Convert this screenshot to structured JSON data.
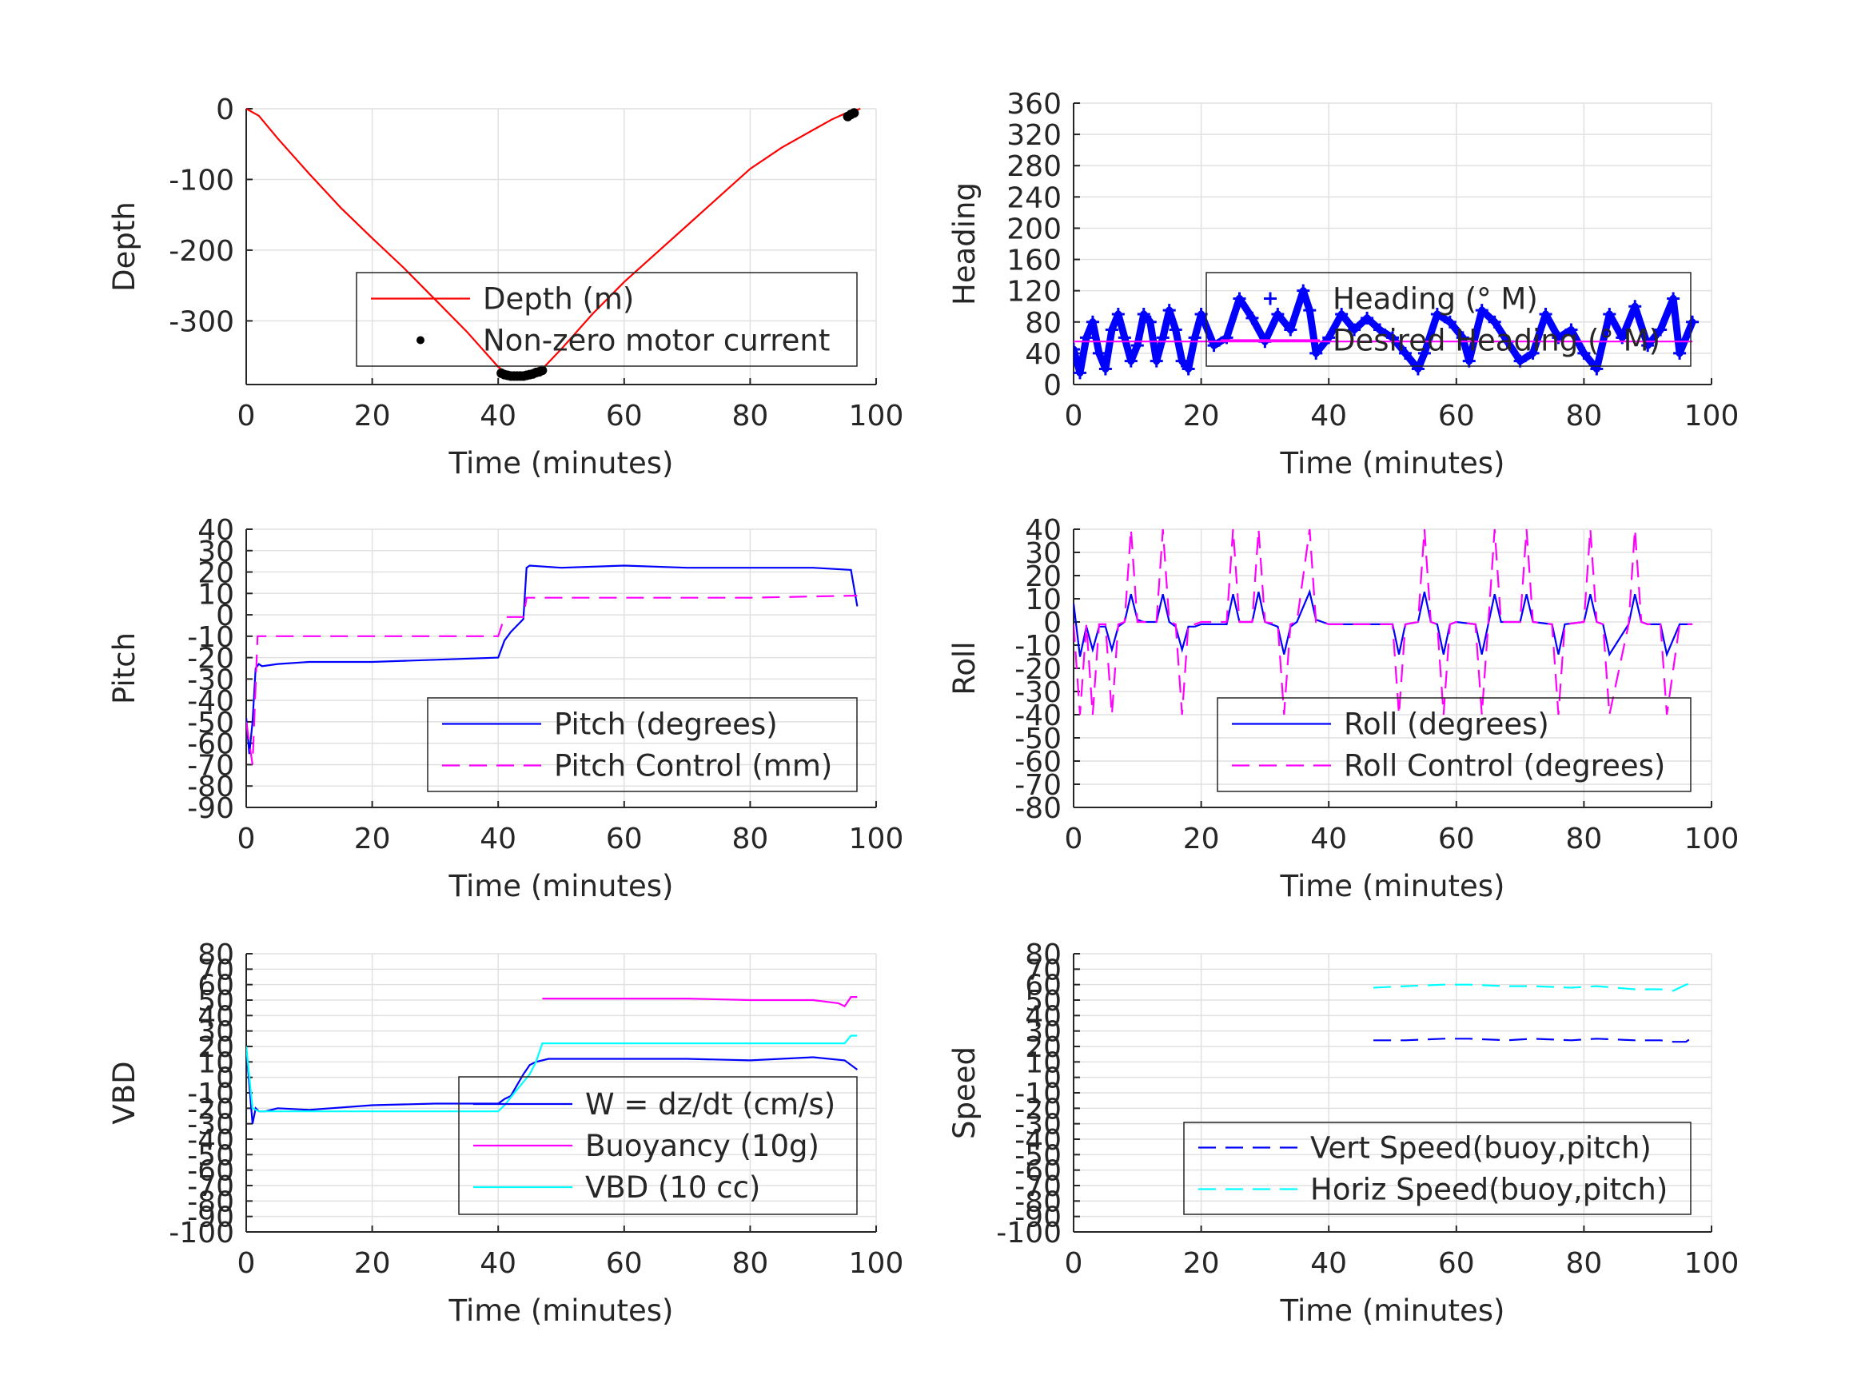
{
  "chart_data": [
    {
      "type": "line",
      "xlabel": "Time (minutes)",
      "ylabel": "Depth",
      "xlim": [
        0,
        100
      ],
      "ylim": [
        -390,
        0
      ],
      "xticks": [
        0,
        20,
        40,
        60,
        80,
        100
      ],
      "yticks": [
        0,
        -100,
        -200,
        -300
      ],
      "grid": true,
      "legend": "bottom-right",
      "series": [
        {
          "name": "Depth (m)",
          "style": "solid",
          "color": "#ff0000",
          "marker": "none",
          "x": [
            0,
            2,
            5,
            10,
            15,
            20,
            25,
            30,
            35,
            40,
            41.5,
            43,
            45,
            47,
            50,
            55,
            60,
            65,
            70,
            75,
            80,
            85,
            90,
            93,
            95,
            97.5
          ],
          "y": [
            0,
            -10,
            -42,
            -92,
            -140,
            -183,
            -225,
            -270,
            -315,
            -365,
            -375,
            -378,
            -376,
            -368,
            -340,
            -290,
            -245,
            -205,
            -165,
            -125,
            -85,
            -55,
            -30,
            -15,
            -7,
            0
          ]
        },
        {
          "name": "Non-zero motor current",
          "style": "none",
          "color": "#000000",
          "marker": "dot",
          "x": [
            40.5,
            41,
            41.5,
            42,
            42.5,
            43,
            43.5,
            44,
            44.5,
            45,
            45.5,
            46,
            46.5,
            47,
            95.5,
            96,
            96.5
          ],
          "y": [
            -374,
            -376,
            -377,
            -378,
            -378,
            -378,
            -378,
            -378,
            -377,
            -376,
            -375,
            -373,
            -372,
            -370,
            -11,
            -8,
            -6
          ]
        }
      ]
    },
    {
      "type": "line",
      "xlabel": "Time (minutes)",
      "ylabel": "Heading",
      "xlim": [
        0,
        100
      ],
      "ylim": [
        0,
        360
      ],
      "xticks": [
        0,
        20,
        40,
        60,
        80,
        100
      ],
      "yticks": [
        0,
        40,
        80,
        120,
        160,
        200,
        240,
        280,
        320,
        360
      ],
      "grid": true,
      "legend": "center-right",
      "series": [
        {
          "name": "Heading (° M)",
          "style": "none",
          "color": "#0000ff",
          "marker": "plus",
          "x": [
            0,
            1,
            2,
            3,
            4,
            5,
            6,
            7,
            8,
            9,
            10,
            11,
            12,
            13,
            14,
            15,
            16,
            17,
            18,
            19,
            20,
            22,
            24,
            26,
            28,
            30,
            32,
            34,
            36,
            37,
            38,
            40,
            42,
            44,
            46,
            48,
            50,
            52,
            54,
            55,
            57,
            59,
            61,
            62,
            64,
            66,
            68,
            70,
            72,
            74,
            76,
            78,
            80,
            82,
            84,
            86,
            88,
            90,
            92,
            94,
            95,
            97
          ],
          "y": [
            45,
            15,
            60,
            80,
            40,
            20,
            70,
            90,
            60,
            30,
            50,
            90,
            80,
            30,
            60,
            95,
            70,
            30,
            20,
            60,
            90,
            50,
            60,
            110,
            85,
            55,
            90,
            70,
            120,
            95,
            40,
            60,
            90,
            70,
            85,
            70,
            60,
            40,
            20,
            40,
            90,
            80,
            60,
            30,
            95,
            80,
            55,
            30,
            40,
            90,
            60,
            70,
            40,
            20,
            90,
            60,
            100,
            50,
            70,
            110,
            40,
            80
          ]
        },
        {
          "name": "Desired Heading (° M)",
          "style": "solid",
          "color": "#ff00ff",
          "marker": "none",
          "x": [
            0,
            97
          ],
          "y": [
            55,
            55
          ]
        }
      ]
    },
    {
      "type": "line",
      "xlabel": "Time (minutes)",
      "ylabel": "Pitch",
      "xlim": [
        0,
        100
      ],
      "ylim": [
        -90,
        40
      ],
      "xticks": [
        0,
        20,
        40,
        60,
        80,
        100
      ],
      "yticks": [
        40,
        30,
        20,
        10,
        0,
        -10,
        -20,
        -30,
        -40,
        -50,
        -60,
        -70,
        -80,
        -90
      ],
      "grid": true,
      "legend": "bottom-right",
      "series": [
        {
          "name": "Pitch (degrees)",
          "style": "solid",
          "color": "#0000ff",
          "marker": "none",
          "x": [
            0,
            0.5,
            1,
            1.5,
            2,
            2.5,
            5,
            10,
            20,
            30,
            40,
            41,
            42,
            43,
            44,
            44.5,
            45,
            50,
            60,
            70,
            80,
            90,
            96,
            97
          ],
          "y": [
            -48,
            -65,
            -50,
            -25,
            -23,
            -24,
            -23,
            -22,
            -22,
            -21,
            -20,
            -12,
            -8,
            -5,
            -2,
            22,
            23,
            22,
            23,
            22,
            22,
            22,
            21,
            4
          ]
        },
        {
          "name": "Pitch Control (mm)",
          "style": "dashed",
          "color": "#ff00ff",
          "marker": "none",
          "x": [
            0,
            1,
            1.8,
            2,
            10,
            20,
            30,
            40,
            41,
            44,
            44.5,
            60,
            80,
            97
          ],
          "y": [
            -50,
            -70,
            -10,
            -10,
            -10,
            -10,
            -10,
            -10,
            -1,
            -1,
            8,
            8,
            8,
            9
          ]
        }
      ]
    },
    {
      "type": "line",
      "xlabel": "Time (minutes)",
      "ylabel": "Roll",
      "xlim": [
        0,
        100
      ],
      "ylim": [
        -80,
        40
      ],
      "xticks": [
        0,
        20,
        40,
        60,
        80,
        100
      ],
      "yticks": [
        40,
        30,
        20,
        10,
        0,
        -10,
        -20,
        -30,
        -40,
        -50,
        -60,
        -70,
        -80
      ],
      "grid": true,
      "legend": "bottom-right",
      "series": [
        {
          "name": "Roll (degrees)",
          "style": "solid",
          "color": "#0000ff",
          "marker": "none",
          "x": [
            0,
            1,
            2,
            3,
            4,
            5,
            6,
            7,
            8,
            9,
            10,
            11,
            13,
            14,
            15,
            16,
            17,
            18,
            19,
            20,
            24,
            25,
            26,
            28,
            29,
            30,
            32,
            33,
            34,
            35,
            37,
            38,
            39,
            40,
            50,
            51,
            52,
            54,
            55,
            56,
            57,
            58,
            59,
            60,
            63,
            64,
            65,
            66,
            67,
            70,
            71,
            72,
            75,
            76,
            77,
            80,
            81,
            82,
            83,
            84,
            87,
            88,
            89,
            90,
            92,
            93,
            95,
            96,
            97
          ],
          "y": [
            8,
            -15,
            -2,
            -12,
            -2,
            -2,
            -12,
            -2,
            0,
            12,
            1,
            0,
            0,
            12,
            0,
            -2,
            -12,
            -2,
            -2,
            -1,
            -1,
            12,
            0,
            0,
            13,
            0,
            -2,
            -14,
            -2,
            0,
            13,
            1,
            0,
            -1,
            -1,
            -14,
            -1,
            0,
            13,
            0,
            -1,
            -14,
            -1,
            0,
            -1,
            -14,
            -1,
            12,
            0,
            0,
            12,
            0,
            -1,
            -14,
            -1,
            0,
            12,
            0,
            -1,
            -14,
            -1,
            12,
            0,
            -1,
            -1,
            -14,
            -1,
            -1,
            -1
          ]
        },
        {
          "name": "Roll Control (degrees)",
          "style": "dashed",
          "color": "#ff00ff",
          "marker": "none",
          "x": [
            0,
            1,
            2,
            3,
            4,
            5,
            6,
            7,
            8,
            9,
            10,
            11,
            13,
            14,
            15,
            16,
            17,
            18,
            19,
            20,
            24,
            25,
            26,
            28,
            29,
            30,
            32,
            33,
            34,
            35,
            37,
            38,
            39,
            40,
            50,
            51,
            52,
            54,
            55,
            56,
            57,
            58,
            59,
            60,
            63,
            64,
            65,
            66,
            67,
            70,
            71,
            72,
            75,
            76,
            77,
            80,
            81,
            82,
            83,
            84,
            87,
            88,
            89,
            90,
            92,
            93,
            95,
            96,
            97
          ],
          "y": [
            -1,
            -40,
            -1,
            -40,
            -1,
            -1,
            -40,
            -1,
            0,
            40,
            0,
            0,
            0,
            40,
            0,
            -1,
            -40,
            -1,
            -1,
            0,
            0,
            40,
            0,
            0,
            40,
            0,
            -1,
            -40,
            -1,
            0,
            40,
            0,
            0,
            -1,
            -1,
            -40,
            -1,
            0,
            40,
            0,
            -1,
            -40,
            -1,
            0,
            -1,
            -40,
            -1,
            40,
            0,
            0,
            40,
            0,
            -1,
            -40,
            -1,
            0,
            40,
            0,
            -1,
            -40,
            -1,
            40,
            0,
            -1,
            -1,
            -40,
            -1,
            -1,
            -1
          ]
        }
      ]
    },
    {
      "type": "line",
      "xlabel": "Time (minutes)",
      "ylabel": "VBD",
      "xlim": [
        0,
        100
      ],
      "ylim": [
        -100,
        80
      ],
      "xticks": [
        0,
        20,
        40,
        60,
        80,
        100
      ],
      "yticks": [
        80,
        70,
        60,
        50,
        40,
        30,
        20,
        10,
        0,
        -10,
        -20,
        -30,
        -40,
        -50,
        -60,
        -70,
        -80,
        -90,
        -100
      ],
      "grid": true,
      "legend": "bottom-right",
      "series": [
        {
          "name": "W = dz/dt (cm/s)",
          "style": "solid",
          "color": "#0000ff",
          "marker": "none",
          "x": [
            0,
            0.5,
            1,
            1.5,
            2,
            3,
            5,
            10,
            20,
            30,
            40,
            41,
            42,
            43,
            44,
            45,
            46,
            48,
            50,
            60,
            70,
            80,
            90,
            95,
            97
          ],
          "y": [
            20,
            -5,
            -30,
            -20,
            -22,
            -22,
            -20,
            -21,
            -18,
            -17,
            -17,
            -14,
            -12,
            -5,
            2,
            8,
            10,
            12,
            12,
            12,
            12,
            11,
            13,
            11,
            5
          ]
        },
        {
          "name": "Buoyancy (10g)",
          "style": "solid",
          "color": "#ff00ff",
          "marker": "none",
          "x": [
            47,
            60,
            70,
            80,
            90,
            94,
            95,
            96,
            97
          ],
          "y": [
            51,
            51,
            51,
            50,
            50,
            48,
            46,
            52,
            52
          ]
        },
        {
          "name": "VBD (10 cc)",
          "style": "solid",
          "color": "#00ffff",
          "marker": "none",
          "x": [
            0,
            1,
            2,
            10,
            20,
            30,
            40,
            41,
            43,
            45,
            46,
            47,
            50,
            60,
            70,
            80,
            90,
            95,
            96,
            97
          ],
          "y": [
            20,
            -20,
            -22,
            -22,
            -22,
            -22,
            -22,
            -18,
            -8,
            2,
            10,
            22,
            22,
            22,
            22,
            22,
            22,
            22,
            27,
            27
          ]
        }
      ]
    },
    {
      "type": "line",
      "xlabel": "Time (minutes)",
      "ylabel": "Speed",
      "xlim": [
        0,
        100
      ],
      "ylim": [
        -100,
        80
      ],
      "xticks": [
        0,
        20,
        40,
        60,
        80,
        100
      ],
      "yticks": [
        80,
        70,
        60,
        50,
        40,
        30,
        20,
        10,
        0,
        -10,
        -20,
        -30,
        -40,
        -50,
        -60,
        -70,
        -80,
        -90,
        -100
      ],
      "grid": true,
      "legend": "bottom-right",
      "series": [
        {
          "name": "Vert Speed(buoy,pitch)",
          "style": "dashed",
          "color": "#0000ff",
          "marker": "none",
          "x": [
            47,
            52,
            58,
            62,
            68,
            72,
            78,
            82,
            88,
            92,
            94,
            96,
            97
          ],
          "y": [
            24,
            24,
            25,
            25,
            24,
            25,
            24,
            25,
            24,
            24,
            23,
            23,
            26
          ]
        },
        {
          "name": "Horiz Speed(buoy,pitch)",
          "style": "dashed",
          "color": "#00ffff",
          "marker": "none",
          "x": [
            47,
            52,
            58,
            62,
            68,
            72,
            78,
            82,
            88,
            92,
            94,
            96,
            97
          ],
          "y": [
            58,
            59,
            60,
            60,
            59,
            59,
            58,
            59,
            57,
            57,
            56,
            60,
            61
          ]
        }
      ]
    }
  ]
}
